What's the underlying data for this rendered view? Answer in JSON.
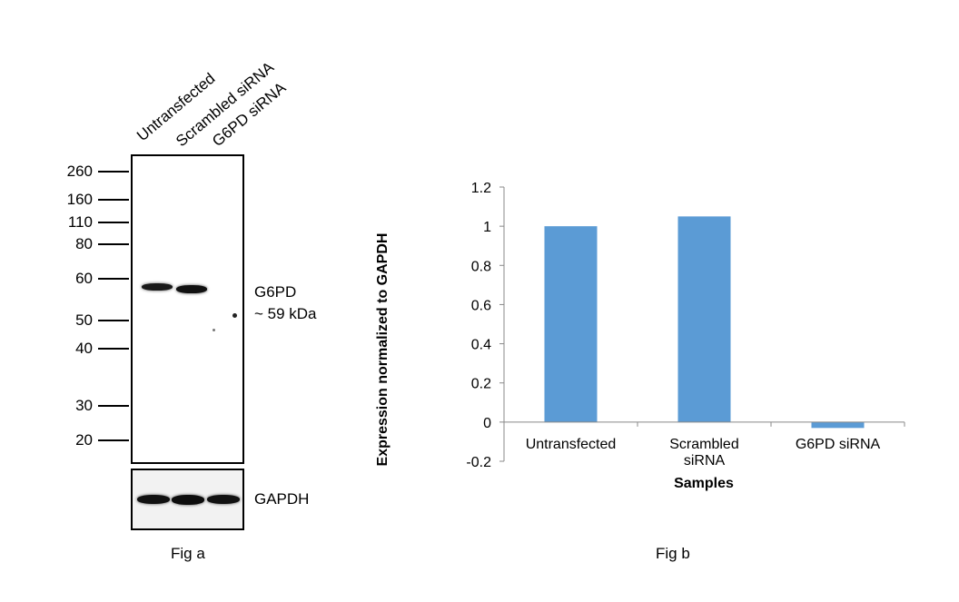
{
  "western_blot": {
    "lanes": [
      "Untransfected",
      "Scrambled siRNA",
      "G6PD siRNA"
    ],
    "markers": [
      "260",
      "160",
      "110",
      "80",
      "60",
      "50",
      "40",
      "30",
      "20"
    ],
    "target_label": "G6PD",
    "target_size": "~ 59 kDa",
    "control_label": "GAPDH",
    "caption": "Fig a"
  },
  "chart_data": {
    "type": "bar",
    "categories": [
      "Untransfected",
      "Scrambled siRNA",
      "G6PD siRNA"
    ],
    "values": [
      1.0,
      1.05,
      -0.03
    ],
    "ylabel": "Expression  normalized to GAPDH",
    "xlabel": "Samples",
    "ylim": [
      -0.2,
      1.2
    ],
    "yticks": [
      "1.2",
      "1",
      "0.8",
      "0.6",
      "0.4",
      "0.2",
      "0",
      "-0.2"
    ],
    "grid": false,
    "bar_color": "#5b9bd5",
    "caption": "Fig b"
  }
}
